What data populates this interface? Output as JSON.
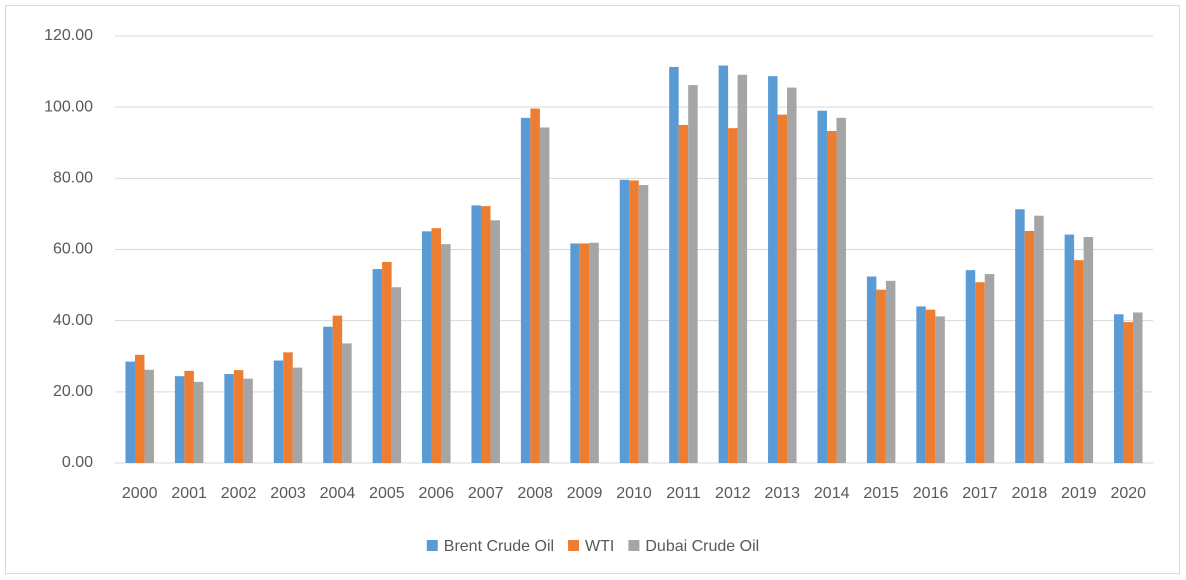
{
  "chart_data": {
    "type": "bar",
    "categories": [
      "2000",
      "2001",
      "2002",
      "2003",
      "2004",
      "2005",
      "2006",
      "2007",
      "2008",
      "2009",
      "2010",
      "2011",
      "2012",
      "2013",
      "2014",
      "2015",
      "2016",
      "2017",
      "2018",
      "2019",
      "2020"
    ],
    "series": [
      {
        "name": "Brent Crude Oil",
        "color": "#5b9bd5",
        "values": [
          28.5,
          24.4,
          25.0,
          28.8,
          38.3,
          54.5,
          65.1,
          72.4,
          97.0,
          61.7,
          79.6,
          111.3,
          111.7,
          108.7,
          99.0,
          52.4,
          44.0,
          54.2,
          71.3,
          64.2,
          41.8
        ]
      },
      {
        "name": "WTI",
        "color": "#ed7d31",
        "values": [
          30.4,
          25.9,
          26.1,
          31.1,
          41.4,
          56.5,
          66.0,
          72.2,
          99.6,
          61.7,
          79.4,
          95.0,
          94.1,
          97.9,
          93.3,
          48.7,
          43.1,
          50.8,
          65.2,
          57.0,
          39.6
        ]
      },
      {
        "name": "Dubai Crude Oil",
        "color": "#a5a5a5",
        "values": [
          26.2,
          22.8,
          23.7,
          26.8,
          33.6,
          49.4,
          61.5,
          68.2,
          94.3,
          61.9,
          78.1,
          106.2,
          109.1,
          105.5,
          97.0,
          51.2,
          41.2,
          53.1,
          69.5,
          63.5,
          42.3
        ]
      }
    ],
    "ylim": [
      0,
      120
    ],
    "yticks": [
      {
        "value": 0,
        "label": "0.00"
      },
      {
        "value": 20,
        "label": "20.00"
      },
      {
        "value": 40,
        "label": "40.00"
      },
      {
        "value": 60,
        "label": "60.00"
      },
      {
        "value": 80,
        "label": "80.00"
      },
      {
        "value": 100,
        "label": "100.00"
      },
      {
        "value": 120,
        "label": "120.00"
      }
    ],
    "grid": true,
    "legend": "bottom"
  }
}
